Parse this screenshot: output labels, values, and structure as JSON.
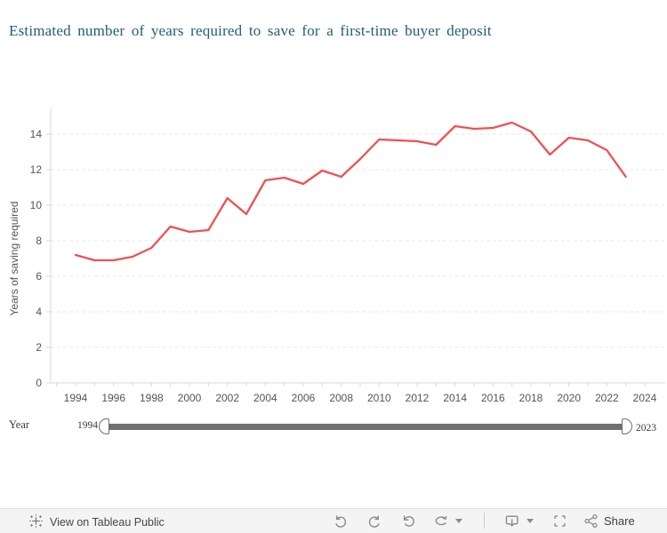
{
  "header": {
    "title": "Estimated number of years required to save for a first-time buyer deposit"
  },
  "chart_data": {
    "type": "line",
    "title": "Estimated number of years required to save for a first-time buyer deposit",
    "xlabel": "",
    "ylabel": "Years of saving required",
    "x": [
      1994,
      1995,
      1996,
      1997,
      1998,
      1999,
      2000,
      2001,
      2002,
      2003,
      2004,
      2005,
      2006,
      2007,
      2008,
      2009,
      2010,
      2011,
      2012,
      2013,
      2014,
      2015,
      2016,
      2017,
      2018,
      2019,
      2020,
      2021,
      2022,
      2023
    ],
    "values": [
      7.2,
      6.9,
      6.9,
      7.1,
      7.6,
      8.8,
      8.5,
      8.6,
      10.4,
      9.5,
      11.4,
      11.55,
      11.2,
      11.95,
      11.6,
      12.6,
      13.7,
      13.65,
      13.6,
      13.4,
      14.45,
      14.3,
      14.35,
      14.65,
      14.15,
      12.85,
      13.8,
      13.65,
      13.1,
      11.6
    ],
    "series_color": "#f05050",
    "yticks": [
      0,
      2,
      4,
      6,
      8,
      10,
      12,
      14
    ],
    "xtick_labels": [
      "1994",
      "1996",
      "1998",
      "2000",
      "2002",
      "2004",
      "2006",
      "2008",
      "2010",
      "2012",
      "2014",
      "2016",
      "2018",
      "2020",
      "2022",
      "2024"
    ],
    "x_axis_range": [
      1993,
      2024
    ],
    "ylim": [
      0,
      15
    ],
    "grid": "horizontal-dashed",
    "legend": "none"
  },
  "slider": {
    "label": "Year",
    "start_value": "1994",
    "end_value": "2023"
  },
  "toolbar": {
    "link_label": "View on Tableau Public",
    "share_label": "Share",
    "icons": [
      "tableau-logo-icon",
      "undo-icon",
      "redo-icon",
      "revert-icon",
      "refresh-icon",
      "caret-down-icon",
      "download-icon",
      "caret-down-icon",
      "fullscreen-icon",
      "share-icon"
    ]
  },
  "colors": {
    "line": "#f05050",
    "title_text": "#215e79",
    "axis_text": "#555555",
    "gridline": "#e8e8e8",
    "axis_line": "#d8d8d8",
    "slider_track": "#6f6f6f",
    "toolbar_bg": "#f4f4f4",
    "toolbar_icon": "#8a8a8a"
  }
}
